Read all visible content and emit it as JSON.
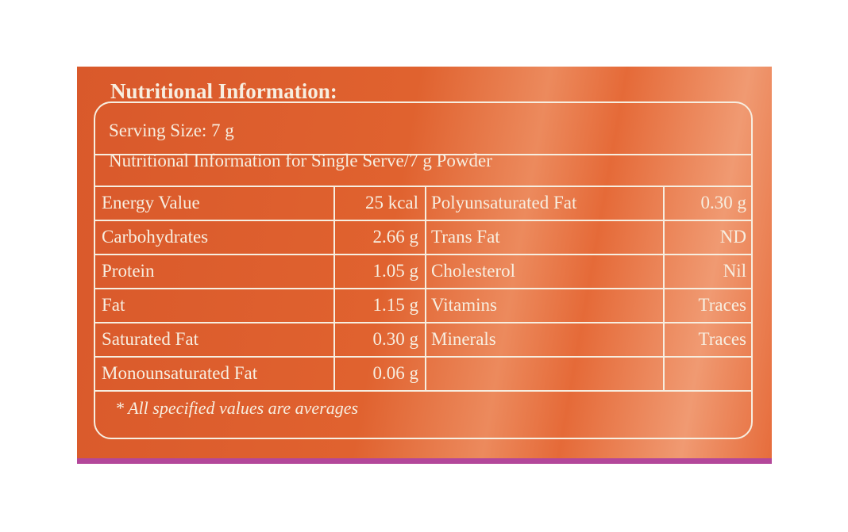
{
  "title": "Nutritional Information:",
  "serving_size": "Serving Size: 7 g",
  "subheading": "Nutritional Information for Single Serve/7 g Powder",
  "table": {
    "rows": [
      [
        "Energy Value",
        "25 kcal",
        "Polyunsaturated Fat",
        "0.30 g"
      ],
      [
        "Carbohydrates",
        "2.66 g",
        "Trans Fat",
        "ND"
      ],
      [
        "Protein",
        "1.05 g",
        "Cholesterol",
        "Nil"
      ],
      [
        "Fat",
        "1.15 g",
        "Vitamins",
        "Traces"
      ],
      [
        "Saturated Fat",
        "0.30 g",
        "Minerals",
        "Traces"
      ],
      [
        "Monounsaturated Fat",
        "0.06 g"
      ]
    ]
  },
  "footnote": "* All specified values are averages"
}
